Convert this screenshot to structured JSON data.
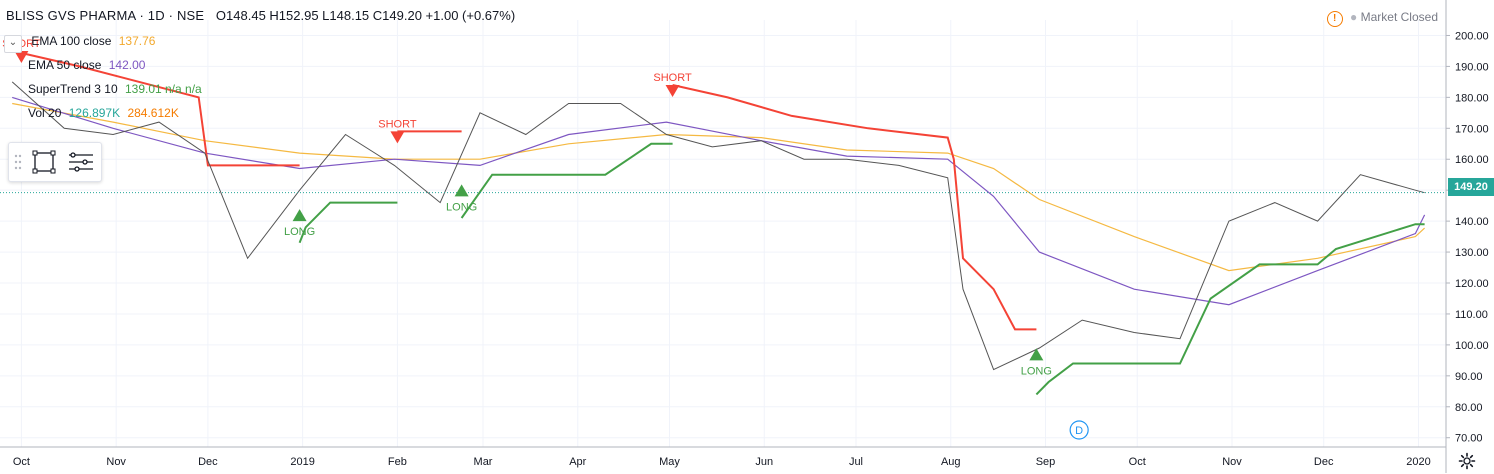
{
  "header": {
    "symbol": "BLISS GVS PHARMA · 1D · NSE",
    "ohlc": "O148.45  H152.95  L148.15  C149.20  +1.00 (+0.67%)"
  },
  "status": {
    "text": "Market Closed"
  },
  "legend": [
    {
      "name": "EMA 100 close",
      "value": "137.76",
      "color": "#f2a92d"
    },
    {
      "name": "EMA 50 close",
      "value": "142.00",
      "color": "#7e57c2"
    },
    {
      "name": "SuperTrend 3 10",
      "value": "139.01  n/a  n/a",
      "color": "#43a047"
    },
    {
      "name": "Vol 20",
      "value": "126.897K",
      "value2": "284.612K",
      "color": "#26a69a",
      "color2": "#f57c00"
    }
  ],
  "colors": {
    "up": "#26a69a",
    "down": "#ef5350",
    "ema100": "#f5b942",
    "ema50": "#7e57c2",
    "st_up": "#43a047",
    "st_down": "#f44336",
    "grid": "#f0f3fa",
    "axis_text": "#131722"
  },
  "price_tag": "149.20",
  "event_badge": "D",
  "signals": [
    {
      "type": "SHORT",
      "label": "SHORT",
      "date": "2018-10-01",
      "price": 195
    },
    {
      "type": "LONG",
      "label": "LONG",
      "date": "2018-12-31",
      "price": 140
    },
    {
      "type": "SHORT",
      "label": "SHORT",
      "date": "2019-02-01",
      "price": 169
    },
    {
      "type": "LONG",
      "label": "LONG",
      "date": "2019-02-22",
      "price": 148
    },
    {
      "type": "SHORT",
      "label": "SHORT",
      "date": "2019-05-02",
      "price": 184
    },
    {
      "type": "LONG",
      "label": "LONG",
      "date": "2019-08-29",
      "price": 95
    }
  ],
  "chart_data": {
    "type": "line",
    "title": "BLISS GVS PHARMA · 1D · NSE",
    "x_ticks": [
      "Oct",
      "Nov",
      "Dec",
      "2019",
      "Feb",
      "Mar",
      "Apr",
      "May",
      "Jun",
      "Jul",
      "Aug",
      "Sep",
      "Oct",
      "Nov",
      "Dec",
      "2020"
    ],
    "y_ticks": [
      "200.00",
      "190.00",
      "180.00",
      "170.00",
      "160.00",
      "150.00",
      "140.00",
      "130.00",
      "120.00",
      "110.00",
      "100.00",
      "90.00",
      "80.00",
      "70.00"
    ],
    "ylim": [
      67,
      205
    ],
    "series": [
      {
        "name": "EMA 100 close",
        "x": [
          "2018-09-28",
          "2018-10-31",
          "2018-11-30",
          "2018-12-31",
          "2019-01-31",
          "2019-02-28",
          "2019-03-29",
          "2019-04-30",
          "2019-05-31",
          "2019-06-28",
          "2019-07-31",
          "2019-08-15",
          "2019-08-30",
          "2019-09-30",
          "2019-10-31",
          "2019-11-29",
          "2019-12-31",
          "2020-01-03"
        ],
        "values": [
          178,
          172,
          166,
          162,
          160,
          160,
          165,
          168,
          167,
          163,
          162,
          157,
          147,
          135,
          124,
          128,
          135,
          137.76
        ]
      },
      {
        "name": "EMA 50 close",
        "x": [
          "2018-09-28",
          "2018-10-31",
          "2018-11-30",
          "2018-12-31",
          "2019-01-31",
          "2019-02-28",
          "2019-03-29",
          "2019-04-30",
          "2019-05-31",
          "2019-06-28",
          "2019-07-31",
          "2019-08-15",
          "2019-08-30",
          "2019-09-30",
          "2019-10-31",
          "2019-11-29",
          "2019-12-31",
          "2020-01-03"
        ],
        "values": [
          180,
          170,
          162,
          157,
          160,
          158,
          168,
          172,
          166,
          161,
          160,
          148,
          130,
          118,
          113,
          124,
          136,
          142.0
        ]
      },
      {
        "name": "SuperTrend 3 10",
        "segments": [
          {
            "trend": "down",
            "x": [
              "2018-09-28",
              "2018-10-20",
              "2018-11-28",
              "2018-12-01",
              "2018-12-31"
            ],
            "values": [
              195,
              190,
              180,
              158,
              158
            ]
          },
          {
            "trend": "up",
            "x": [
              "2018-12-31",
              "2019-01-02",
              "2019-01-10",
              "2019-01-31",
              "2019-02-01"
            ],
            "values": [
              133,
              138,
              146,
              146,
              146
            ]
          },
          {
            "trend": "down",
            "x": [
              "2019-02-01",
              "2019-02-22"
            ],
            "values": [
              169,
              169
            ]
          },
          {
            "trend": "up",
            "x": [
              "2019-02-22",
              "2019-03-04",
              "2019-04-10",
              "2019-04-25",
              "2019-05-02"
            ],
            "values": [
              141,
              155,
              155,
              165,
              165
            ]
          },
          {
            "trend": "down",
            "x": [
              "2019-05-02",
              "2019-05-20",
              "2019-06-10",
              "2019-07-05",
              "2019-07-31",
              "2019-08-02",
              "2019-08-05",
              "2019-08-15",
              "2019-08-22",
              "2019-08-29"
            ],
            "values": [
              184,
              180,
              174,
              170,
              167,
              160,
              128,
              118,
              105,
              105
            ]
          },
          {
            "trend": "up",
            "x": [
              "2019-08-29",
              "2019-09-02",
              "2019-09-10",
              "2019-09-20",
              "2019-10-15",
              "2019-10-25",
              "2019-11-10",
              "2019-11-29",
              "2019-12-05",
              "2019-12-31",
              "2020-01-03"
            ],
            "values": [
              84,
              88,
              94,
              94,
              94,
              115,
              126,
              126,
              131,
              139,
              139
            ]
          }
        ]
      },
      {
        "name": "Price (close)",
        "x": [
          "2018-09-28",
          "2018-10-15",
          "2018-10-31",
          "2018-11-15",
          "2018-11-30",
          "2018-12-14",
          "2018-12-31",
          "2019-01-15",
          "2019-01-31",
          "2019-02-15",
          "2019-02-28",
          "2019-03-15",
          "2019-03-29",
          "2019-04-15",
          "2019-04-30",
          "2019-05-15",
          "2019-05-31",
          "2019-06-14",
          "2019-06-28",
          "2019-07-15",
          "2019-07-31",
          "2019-08-05",
          "2019-08-15",
          "2019-08-30",
          "2019-09-13",
          "2019-09-30",
          "2019-10-15",
          "2019-10-31",
          "2019-11-15",
          "2019-11-29",
          "2019-12-13",
          "2019-12-31",
          "2020-01-03"
        ],
        "values": [
          185,
          170,
          168,
          172,
          162,
          128,
          150,
          168,
          158,
          146,
          175,
          168,
          178,
          178,
          168,
          164,
          166,
          160,
          160,
          158,
          154,
          118,
          92,
          99,
          108,
          104,
          102,
          140,
          146,
          140,
          155,
          150,
          149.2
        ]
      }
    ]
  }
}
